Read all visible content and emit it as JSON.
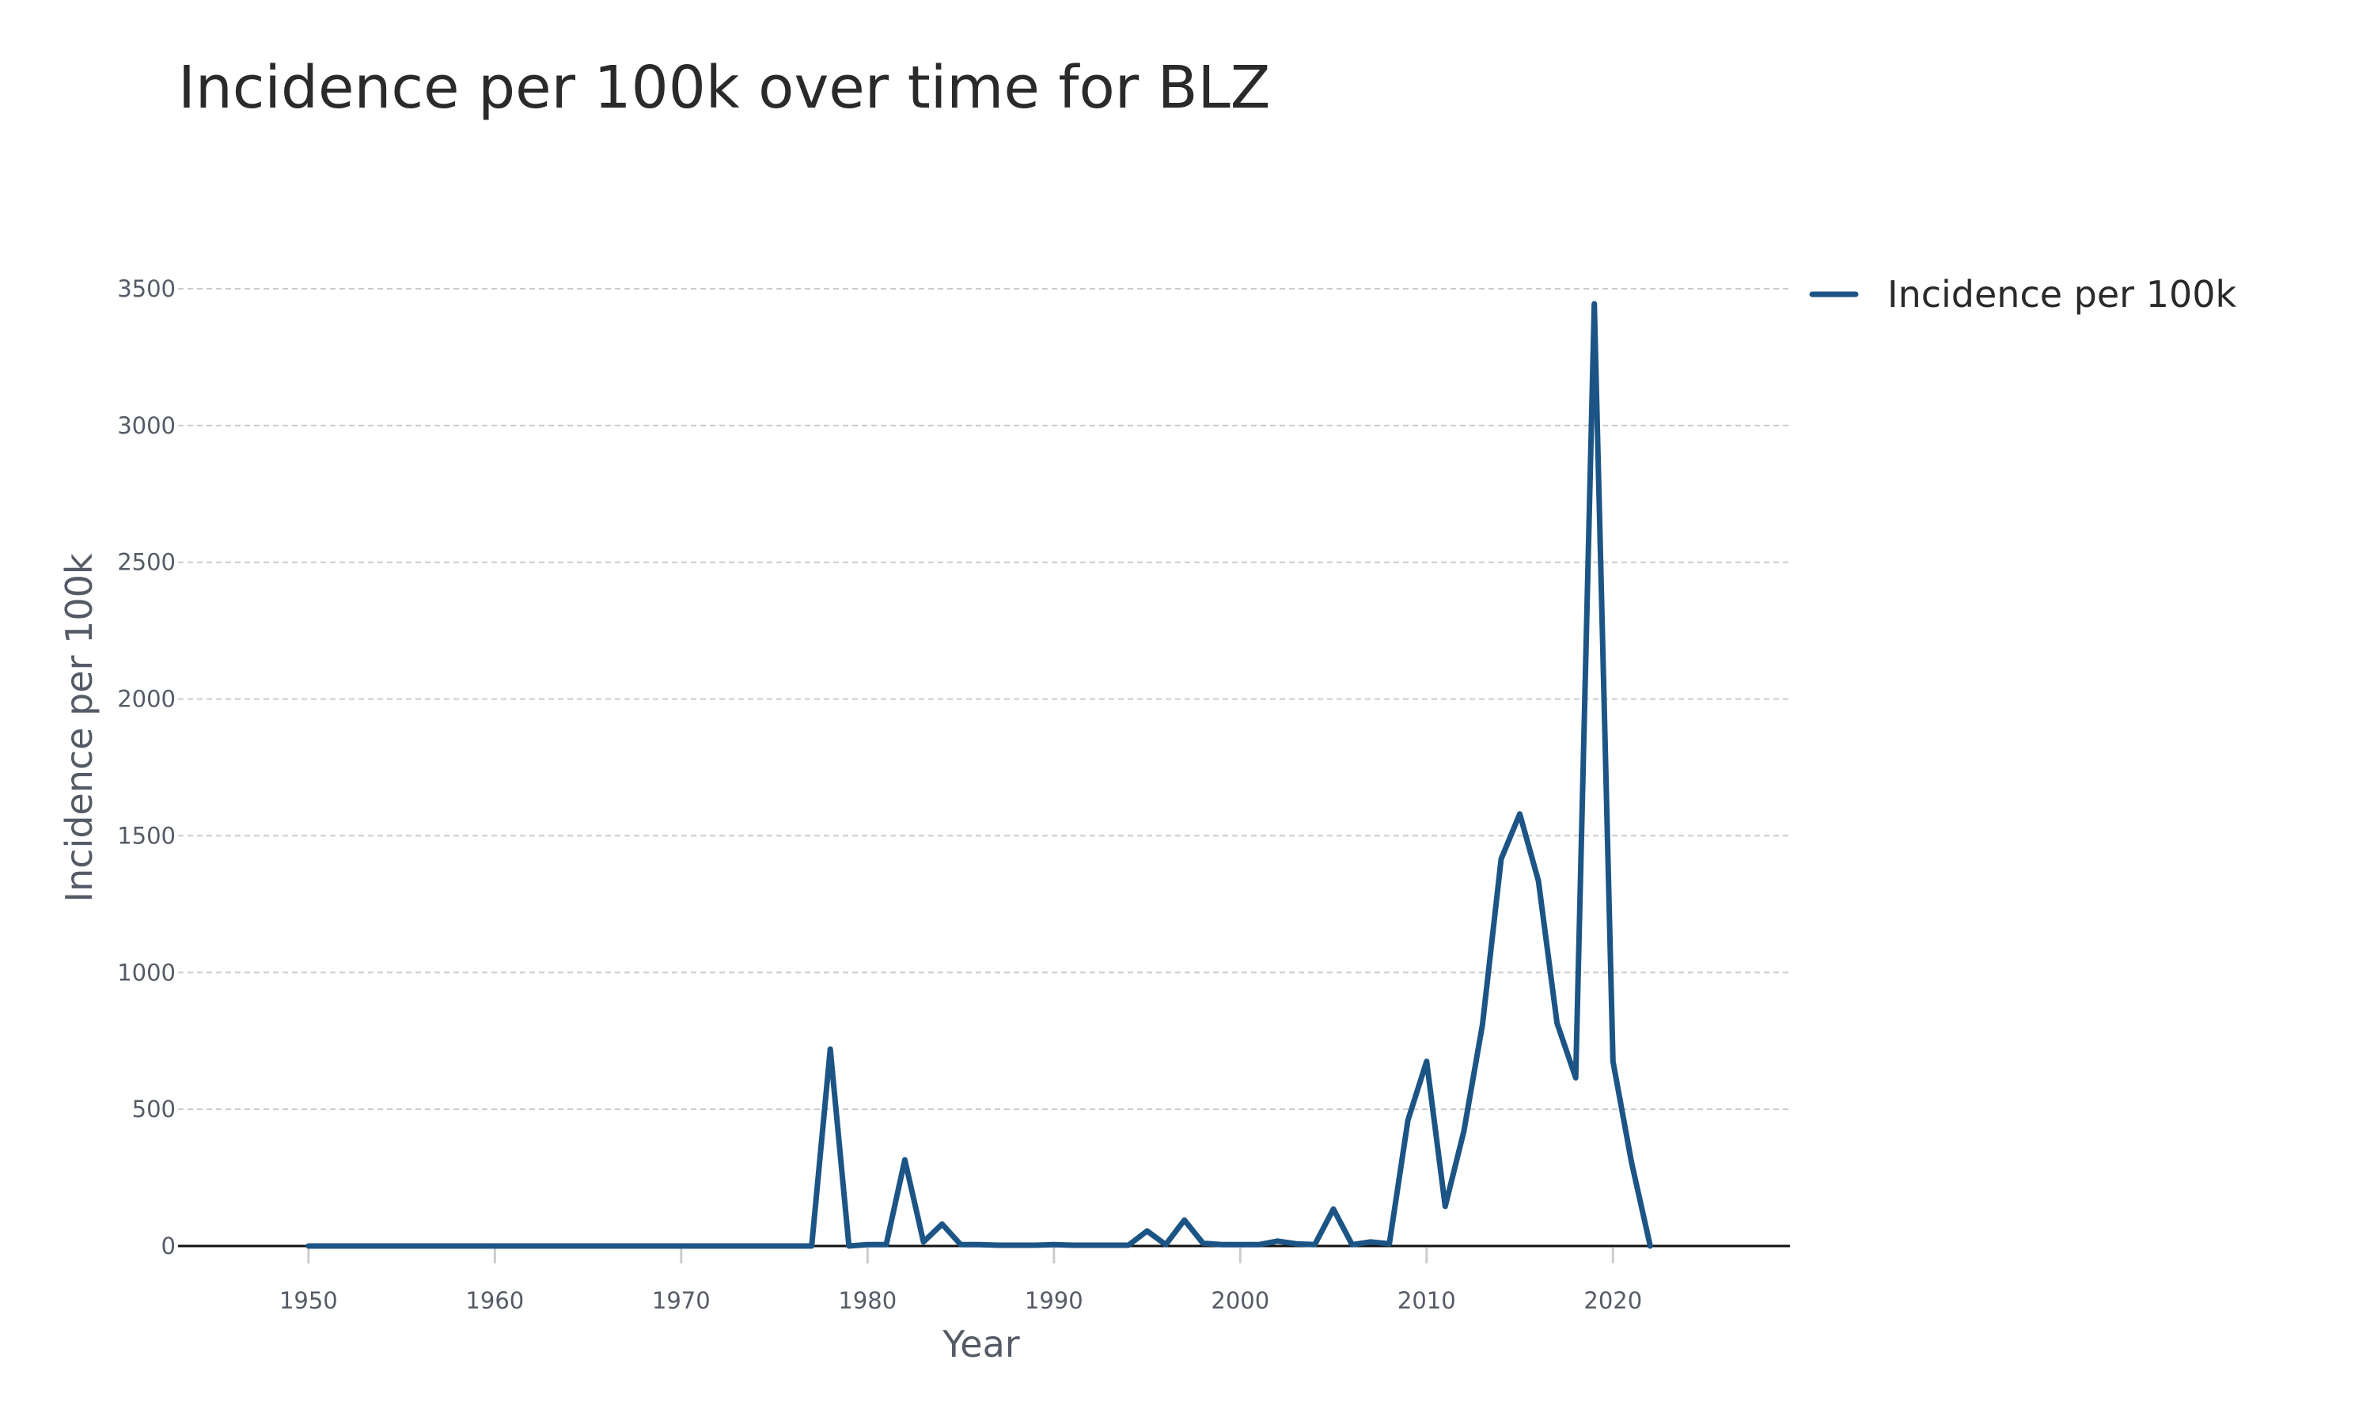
{
  "chart_data": {
    "type": "line",
    "title": "Incidence per 100k over time for BLZ",
    "xlabel": "Year",
    "ylabel": "Incidence per 100k",
    "xlim": [
      1943,
      2029.5
    ],
    "ylim": [
      0,
      3500
    ],
    "xticks": [
      "1950",
      "1960",
      "1970",
      "1980",
      "1990",
      "2000",
      "2010",
      "2020"
    ],
    "yticks": [
      "0",
      "500",
      "1000",
      "1500",
      "2000",
      "2500",
      "3000",
      "3500"
    ],
    "grid": true,
    "legend_position": "top-right",
    "series": [
      {
        "name": "Incidence per 100k",
        "color": "#1c5585",
        "x": [
          1950,
          1951,
          1952,
          1953,
          1954,
          1955,
          1956,
          1957,
          1958,
          1959,
          1960,
          1961,
          1962,
          1963,
          1964,
          1965,
          1966,
          1967,
          1968,
          1969,
          1970,
          1971,
          1972,
          1973,
          1974,
          1975,
          1976,
          1977,
          1978,
          1979,
          1980,
          1981,
          1982,
          1983,
          1984,
          1985,
          1986,
          1987,
          1988,
          1989,
          1990,
          1991,
          1992,
          1993,
          1994,
          1995,
          1996,
          1997,
          1998,
          1999,
          2000,
          2001,
          2002,
          2003,
          2004,
          2005,
          2006,
          2007,
          2008,
          2009,
          2010,
          2011,
          2012,
          2013,
          2014,
          2015,
          2016,
          2017,
          2018,
          2019,
          2020,
          2021,
          2022
        ],
        "y": [
          0,
          0,
          0,
          0,
          0,
          0,
          0,
          0,
          0,
          0,
          0,
          0,
          0,
          0,
          0,
          0,
          0,
          0,
          0,
          0,
          0,
          0,
          0,
          0,
          0,
          0,
          0,
          0,
          720,
          0,
          5,
          5,
          315,
          15,
          80,
          5,
          5,
          3,
          3,
          3,
          5,
          3,
          3,
          3,
          3,
          55,
          5,
          95,
          10,
          5,
          5,
          5,
          18,
          8,
          5,
          135,
          5,
          15,
          8,
          460,
          675,
          145,
          420,
          810,
          1415,
          1580,
          1335,
          815,
          615,
          3445,
          675,
          305,
          0
        ]
      }
    ]
  }
}
